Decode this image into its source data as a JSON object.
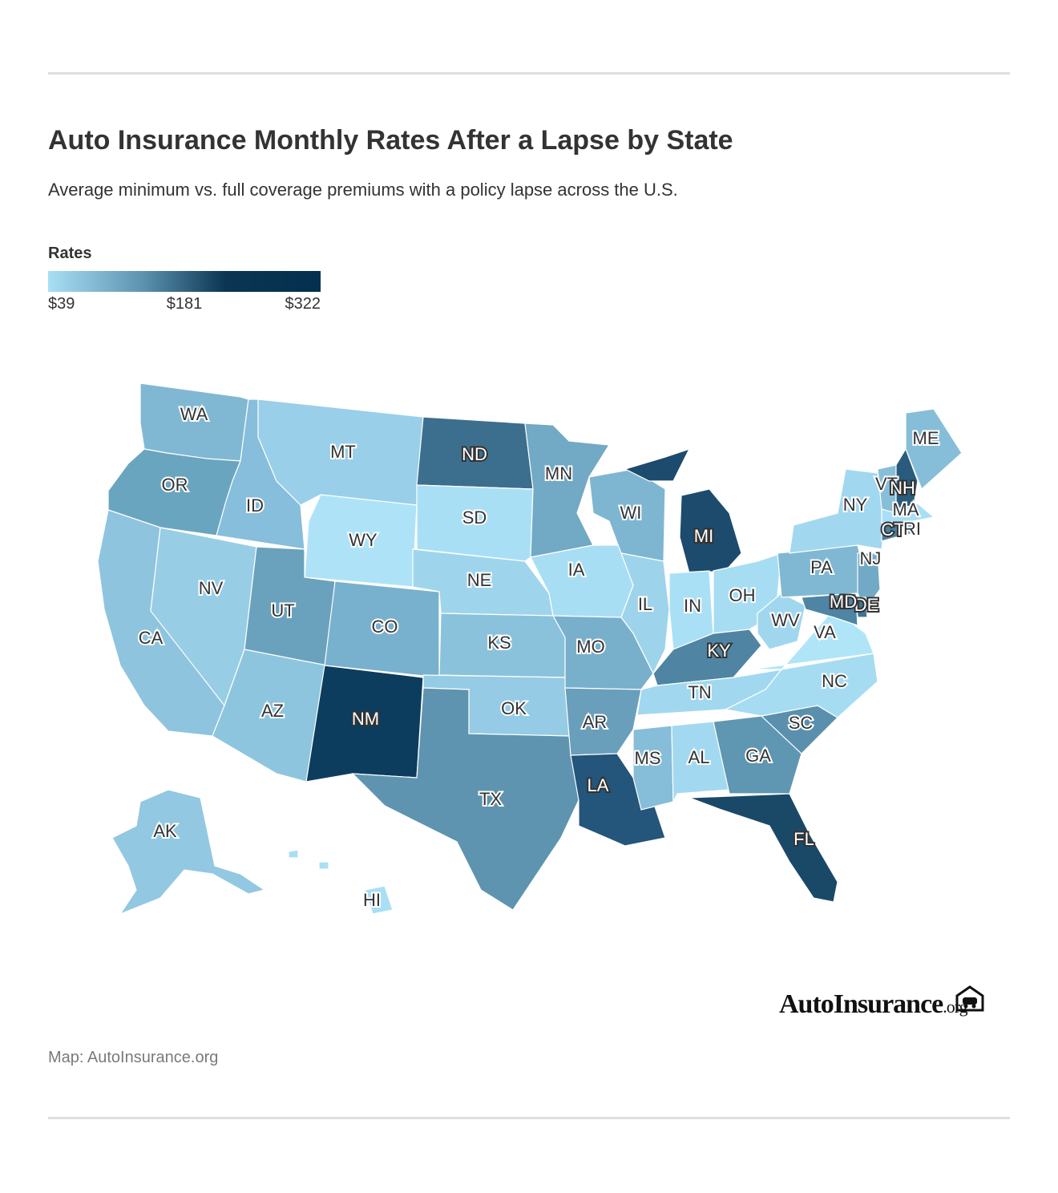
{
  "header": {
    "title": "Auto Insurance Monthly Rates After a Lapse by State",
    "subtitle": "Average minimum vs. full coverage premiums with a policy lapse across the U.S."
  },
  "legend": {
    "title": "Rates",
    "min_label": "$39",
    "mid_label": "$181",
    "max_label": "$322",
    "color_min": "#a9dff5",
    "color_max": "#042f4e"
  },
  "states": [
    {
      "abbr": "WA",
      "color": "#80b8d3"
    },
    {
      "abbr": "OR",
      "color": "#6aa5c0"
    },
    {
      "abbr": "CA",
      "color": "#8ec4de"
    },
    {
      "abbr": "ID",
      "color": "#86bedb"
    },
    {
      "abbr": "NV",
      "color": "#98cde6"
    },
    {
      "abbr": "MT",
      "color": "#99cfe8"
    },
    {
      "abbr": "WY",
      "color": "#aee3f7"
    },
    {
      "abbr": "UT",
      "color": "#6aa2bd"
    },
    {
      "abbr": "AZ",
      "color": "#8ec5de"
    },
    {
      "abbr": "CO",
      "color": "#78b1cd"
    },
    {
      "abbr": "NM",
      "color": "#0c3d5e"
    },
    {
      "abbr": "ND",
      "color": "#3c6f8d"
    },
    {
      "abbr": "SD",
      "color": "#a9dff5"
    },
    {
      "abbr": "NE",
      "color": "#9fd5ec"
    },
    {
      "abbr": "KS",
      "color": "#8ac2dc"
    },
    {
      "abbr": "OK",
      "color": "#95cbe4"
    },
    {
      "abbr": "TX",
      "color": "#5e94b0"
    },
    {
      "abbr": "MN",
      "color": "#72a9c5"
    },
    {
      "abbr": "IA",
      "color": "#a8def4"
    },
    {
      "abbr": "MO",
      "color": "#78b0cc"
    },
    {
      "abbr": "AR",
      "color": "#6a9fbb"
    },
    {
      "abbr": "LA",
      "color": "#24557a"
    },
    {
      "abbr": "WI",
      "color": "#7eb6d1"
    },
    {
      "abbr": "IL",
      "color": "#9ed4eb"
    },
    {
      "abbr": "MI",
      "color": "#1c4b6d"
    },
    {
      "abbr": "IN",
      "color": "#aae0f6"
    },
    {
      "abbr": "OH",
      "color": "#a7ddf3"
    },
    {
      "abbr": "KY",
      "color": "#4f84a3"
    },
    {
      "abbr": "TN",
      "color": "#a2d8ef"
    },
    {
      "abbr": "MS",
      "color": "#86bdd8"
    },
    {
      "abbr": "AL",
      "color": "#a3d9f0"
    },
    {
      "abbr": "GA",
      "color": "#5f96b2"
    },
    {
      "abbr": "FL",
      "color": "#1a4968"
    },
    {
      "abbr": "SC",
      "color": "#5a90ad"
    },
    {
      "abbr": "NC",
      "color": "#a6dcf2"
    },
    {
      "abbr": "VA",
      "color": "#b0e5f8"
    },
    {
      "abbr": "WV",
      "color": "#a1d7ee"
    },
    {
      "abbr": "PA",
      "color": "#80b8d3"
    },
    {
      "abbr": "NY",
      "color": "#a2d8ef"
    },
    {
      "abbr": "NJ",
      "color": "#72aac6"
    },
    {
      "abbr": "DE",
      "color": "#3f7393"
    },
    {
      "abbr": "MD",
      "color": "#4e84a4"
    },
    {
      "abbr": "CT",
      "color": "#4a7f9f"
    },
    {
      "abbr": "RI",
      "color": "#6fa7c3"
    },
    {
      "abbr": "MA",
      "color": "#a9dff5"
    },
    {
      "abbr": "VT",
      "color": "#87bfd9"
    },
    {
      "abbr": "NH",
      "color": "#2a5b7c"
    },
    {
      "abbr": "ME",
      "color": "#86bed9"
    },
    {
      "abbr": "AK",
      "color": "#92c8e1"
    },
    {
      "abbr": "HI",
      "color": "#a9dff5"
    }
  ],
  "brand": {
    "name": "AutoInsurance",
    "suffix": ".org"
  },
  "source": "Map: AutoInsurance.org",
  "icons": {
    "brand_logo": "car-garage-icon"
  }
}
